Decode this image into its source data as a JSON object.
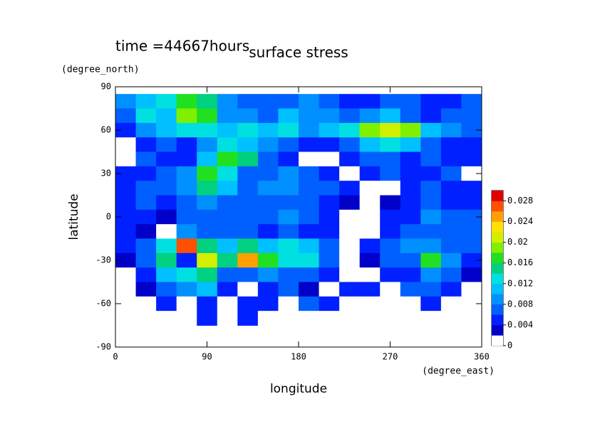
{
  "chart_data": {
    "type": "heatmap",
    "title": "surface stress",
    "subtitle": "time =44667hours",
    "xlabel": "longitude",
    "xunit": "(degree_east)",
    "ylabel": "latitude",
    "yunit": "(degree_north)",
    "xlim": [
      0,
      360
    ],
    "xticks": [
      0,
      90,
      180,
      270,
      360
    ],
    "ylim": [
      -90,
      90
    ],
    "yticks": [
      -90,
      -60,
      -30,
      0,
      30,
      60,
      90
    ],
    "x": [
      10,
      30,
      50,
      70,
      90,
      110,
      130,
      150,
      170,
      190,
      210,
      230,
      250,
      270,
      290,
      310,
      330,
      350
    ],
    "y": [
      80,
      70,
      60,
      50,
      40,
      30,
      20,
      10,
      0,
      -10,
      -20,
      -30,
      -40,
      -50,
      -60,
      -70
    ],
    "z": [
      [
        0.008,
        0.01,
        0.012,
        0.016,
        0.014,
        0.008,
        0.006,
        0.006,
        0.006,
        0.008,
        0.006,
        0.004,
        0.004,
        0.006,
        0.006,
        0.004,
        0.004,
        0.006
      ],
      [
        0.006,
        0.012,
        0.01,
        0.018,
        0.016,
        0.008,
        0.008,
        0.006,
        0.01,
        0.008,
        0.008,
        0.006,
        0.008,
        0.01,
        0.006,
        0.004,
        0.006,
        0.006
      ],
      [
        0.004,
        0.008,
        0.01,
        0.012,
        0.012,
        0.01,
        0.012,
        0.01,
        0.012,
        0.008,
        0.01,
        0.012,
        0.018,
        0.02,
        0.018,
        0.01,
        0.008,
        0.006
      ],
      [
        0,
        0.004,
        0.006,
        0.004,
        0.008,
        0.012,
        0.01,
        0.008,
        0.006,
        0.004,
        0.004,
        0.006,
        0.01,
        0.012,
        0.01,
        0.006,
        0.004,
        0.004
      ],
      [
        0,
        0.006,
        0.004,
        0.004,
        0.01,
        0.016,
        0.014,
        0.006,
        0.004,
        0,
        0,
        0.004,
        0.006,
        0.006,
        0.004,
        0.006,
        0.004,
        0.004
      ],
      [
        0.004,
        0.004,
        0.006,
        0.008,
        0.016,
        0.012,
        0.006,
        0.006,
        0.008,
        0.006,
        0.004,
        0,
        0.004,
        0.006,
        0.004,
        0.004,
        0.006,
        0
      ],
      [
        0.004,
        0.006,
        0.006,
        0.008,
        0.014,
        0.01,
        0.006,
        0.008,
        0.008,
        0.006,
        0.006,
        0.004,
        0,
        0,
        0.004,
        0.006,
        0.004,
        0.004
      ],
      [
        0.004,
        0.006,
        0.004,
        0.006,
        0.008,
        0.006,
        0.006,
        0.006,
        0.006,
        0.006,
        0.004,
        0.002,
        0,
        0.002,
        0.004,
        0.006,
        0.004,
        0.004
      ],
      [
        0.004,
        0.004,
        0.002,
        0.006,
        0.006,
        0.006,
        0.006,
        0.006,
        0.008,
        0.006,
        0.004,
        0,
        0,
        0.004,
        0.004,
        0.008,
        0.006,
        0.006
      ],
      [
        0.004,
        0.002,
        0,
        0.008,
        0.006,
        0.006,
        0.006,
        0.004,
        0.006,
        0.004,
        0.004,
        0,
        0,
        0.004,
        0.006,
        0.006,
        0.006,
        0.006
      ],
      [
        0.004,
        0.006,
        0.012,
        0.026,
        0.014,
        0.01,
        0.014,
        0.01,
        0.012,
        0.01,
        0.006,
        0,
        0.004,
        0.006,
        0.008,
        0.008,
        0.006,
        0.006
      ],
      [
        0.002,
        0.006,
        0.014,
        0.004,
        0.02,
        0.014,
        0.024,
        0.016,
        0.012,
        0.012,
        0.006,
        0,
        0.002,
        0.006,
        0.006,
        0.016,
        0.008,
        0.004
      ],
      [
        0,
        0.004,
        0.01,
        0.012,
        0.014,
        0.006,
        0.006,
        0.008,
        0.006,
        0.006,
        0.004,
        0,
        0,
        0.004,
        0.004,
        0.008,
        0.006,
        0.002
      ],
      [
        0,
        0.002,
        0.006,
        0.008,
        0.01,
        0.004,
        0,
        0.004,
        0.006,
        0.002,
        0,
        0.004,
        0.004,
        0,
        0.006,
        0.006,
        0.004,
        0
      ],
      [
        0,
        0,
        0.004,
        0,
        0.004,
        0,
        0.004,
        0.004,
        0,
        0.006,
        0.004,
        0,
        0,
        0,
        0,
        0.004,
        0,
        0
      ],
      [
        0,
        0,
        0,
        0,
        0.004,
        0,
        0.004,
        0,
        0,
        0,
        0,
        0,
        0,
        0,
        0,
        0,
        0,
        0
      ]
    ],
    "cell_size": [
      20,
      10
    ],
    "clim": [
      0,
      0.03
    ],
    "cticks": [
      0,
      0.004,
      0.008,
      0.012,
      0.016,
      0.02,
      0.024,
      0.028
    ],
    "colormap": [
      "#ffffff",
      "#0000c8",
      "#0020ff",
      "#0060ff",
      "#0090ff",
      "#00c0ff",
      "#00e0e0",
      "#00d080",
      "#20e020",
      "#80f000",
      "#d0f000",
      "#ffe000",
      "#ffa000",
      "#ff5000",
      "#e00000"
    ]
  }
}
